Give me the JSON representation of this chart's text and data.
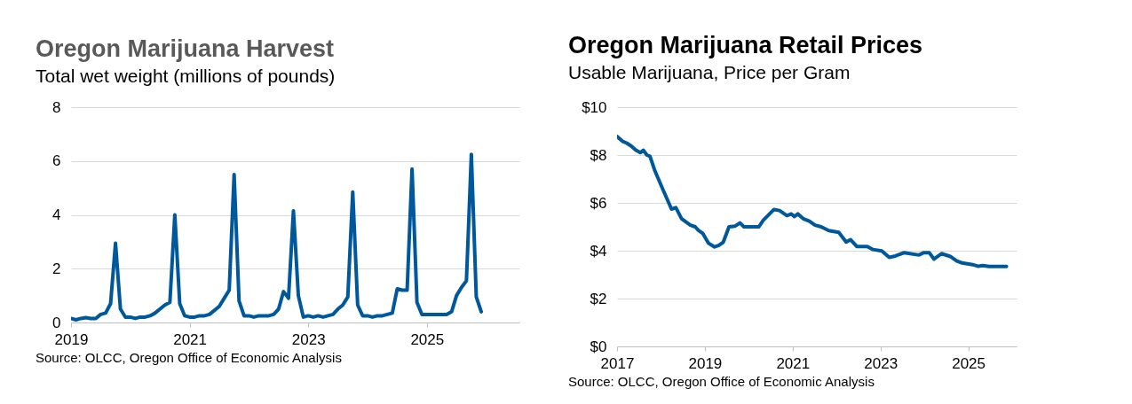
{
  "chart_data": [
    {
      "type": "line",
      "title": "Oregon Marijuana Harvest",
      "subtitle": "Total wet weight  (millions of pounds)",
      "annotations": [
        "Source: OLCC, Oregon Office of Economic Analysis"
      ],
      "series": [
        {
          "color": "#00589c",
          "x": [
            2019.0,
            2019.083,
            2019.167,
            2019.25,
            2019.333,
            2019.417,
            2019.5,
            2019.583,
            2019.667,
            2019.75,
            2019.833,
            2019.917,
            2020.0,
            2020.083,
            2020.167,
            2020.25,
            2020.333,
            2020.417,
            2020.5,
            2020.583,
            2020.667,
            2020.75,
            2020.833,
            2020.917,
            2021.0,
            2021.083,
            2021.167,
            2021.25,
            2021.333,
            2021.417,
            2021.5,
            2021.583,
            2021.667,
            2021.75,
            2021.833,
            2021.917,
            2022.0,
            2022.083,
            2022.167,
            2022.25,
            2022.333,
            2022.417,
            2022.5,
            2022.583,
            2022.667,
            2022.75,
            2022.833,
            2022.917,
            2023.0,
            2023.083,
            2023.167,
            2023.25,
            2023.333,
            2023.417,
            2023.5,
            2023.583,
            2023.667,
            2023.75,
            2023.833,
            2023.917,
            2024.0,
            2024.083,
            2024.167,
            2024.25,
            2024.333,
            2024.417,
            2024.5,
            2024.583,
            2024.667,
            2024.75,
            2024.833,
            2024.917,
            2025.0,
            2025.083,
            2025.167,
            2025.25,
            2025.333,
            2025.417,
            2025.5,
            2025.583,
            2025.667,
            2025.75,
            2025.833,
            2025.917
          ],
          "values": [
            0.15,
            0.1,
            0.15,
            0.18,
            0.15,
            0.15,
            0.3,
            0.35,
            0.7,
            2.95,
            0.5,
            0.2,
            0.2,
            0.15,
            0.2,
            0.2,
            0.25,
            0.35,
            0.5,
            0.65,
            0.75,
            4.0,
            0.7,
            0.25,
            0.2,
            0.2,
            0.25,
            0.25,
            0.3,
            0.45,
            0.6,
            0.9,
            1.2,
            5.5,
            0.8,
            0.25,
            0.25,
            0.2,
            0.25,
            0.25,
            0.25,
            0.3,
            0.5,
            1.15,
            0.9,
            4.15,
            1.0,
            0.2,
            0.25,
            0.2,
            0.25,
            0.2,
            0.25,
            0.3,
            0.5,
            0.65,
            0.95,
            4.85,
            0.65,
            0.25,
            0.25,
            0.2,
            0.25,
            0.25,
            0.3,
            0.35,
            1.25,
            1.2,
            1.2,
            5.7,
            0.75,
            0.3,
            0.3,
            0.3,
            0.3,
            0.3,
            0.3,
            0.4,
            1.0,
            1.3,
            1.55,
            6.25,
            0.95,
            0.4
          ]
        }
      ],
      "xlim": [
        2019,
        2026.56
      ],
      "xticks": [
        2019,
        2021,
        2023,
        2025
      ],
      "ylim": [
        0,
        8
      ],
      "yticks": [
        0,
        2,
        4,
        6,
        8
      ],
      "grid": "y",
      "line_style": "solid"
    },
    {
      "type": "line",
      "title": "Oregon Marijuana Retail Prices",
      "subtitle": "Usable Marijuana, Price per Gram",
      "annotations": [
        "Source: OLCC, Oregon Office of Economic Analysis"
      ],
      "series": [
        {
          "color": "#00589c",
          "x": [
            2017.0,
            2017.12,
            2017.22,
            2017.32,
            2017.43,
            2017.53,
            2017.6,
            2017.68,
            2017.75,
            2017.86,
            2018.03,
            2018.24,
            2018.34,
            2018.47,
            2018.67,
            2018.78,
            2018.85,
            2018.95,
            2019.08,
            2019.22,
            2019.32,
            2019.42,
            2019.55,
            2019.69,
            2019.8,
            2019.89,
            2020.23,
            2020.33,
            2020.57,
            2020.7,
            2020.87,
            2020.97,
            2021.04,
            2021.12,
            2021.24,
            2021.38,
            2021.51,
            2021.65,
            2021.82,
            2022.05,
            2022.22,
            2022.32,
            2022.46,
            2022.7,
            2022.83,
            2023.03,
            2023.2,
            2023.34,
            2023.54,
            2023.88,
            2023.98,
            2024.11,
            2024.22,
            2024.39,
            2024.59,
            2024.73,
            2024.86,
            2025.1,
            2025.23,
            2025.33,
            2025.47,
            2025.87
          ],
          "values": [
            8.78,
            8.58,
            8.5,
            8.38,
            8.2,
            8.1,
            8.2,
            8.0,
            7.95,
            7.35,
            6.62,
            5.74,
            5.8,
            5.34,
            5.07,
            5.0,
            4.86,
            4.73,
            4.32,
            4.16,
            4.23,
            4.36,
            5.0,
            5.03,
            5.16,
            5.0,
            5.0,
            5.27,
            5.72,
            5.68,
            5.47,
            5.54,
            5.43,
            5.54,
            5.34,
            5.24,
            5.07,
            5.0,
            4.84,
            4.77,
            4.36,
            4.46,
            4.18,
            4.18,
            4.05,
            3.99,
            3.72,
            3.78,
            3.92,
            3.82,
            3.92,
            3.92,
            3.65,
            3.88,
            3.76,
            3.58,
            3.49,
            3.42,
            3.35,
            3.38,
            3.34,
            3.34
          ]
        }
      ],
      "xlim": [
        2017,
        2026.1
      ],
      "xticks": [
        2017,
        2019,
        2021,
        2023,
        2025
      ],
      "ylim": [
        0,
        10
      ],
      "yticks": [
        {
          "value": 0,
          "label": "$0"
        },
        {
          "value": 2,
          "label": "$2"
        },
        {
          "value": 4,
          "label": "$4"
        },
        {
          "value": 6,
          "label": "$6"
        },
        {
          "value": 8,
          "label": "$8"
        },
        {
          "value": 10,
          "label": "$10"
        }
      ],
      "grid": "y",
      "line_style": "solid"
    }
  ]
}
